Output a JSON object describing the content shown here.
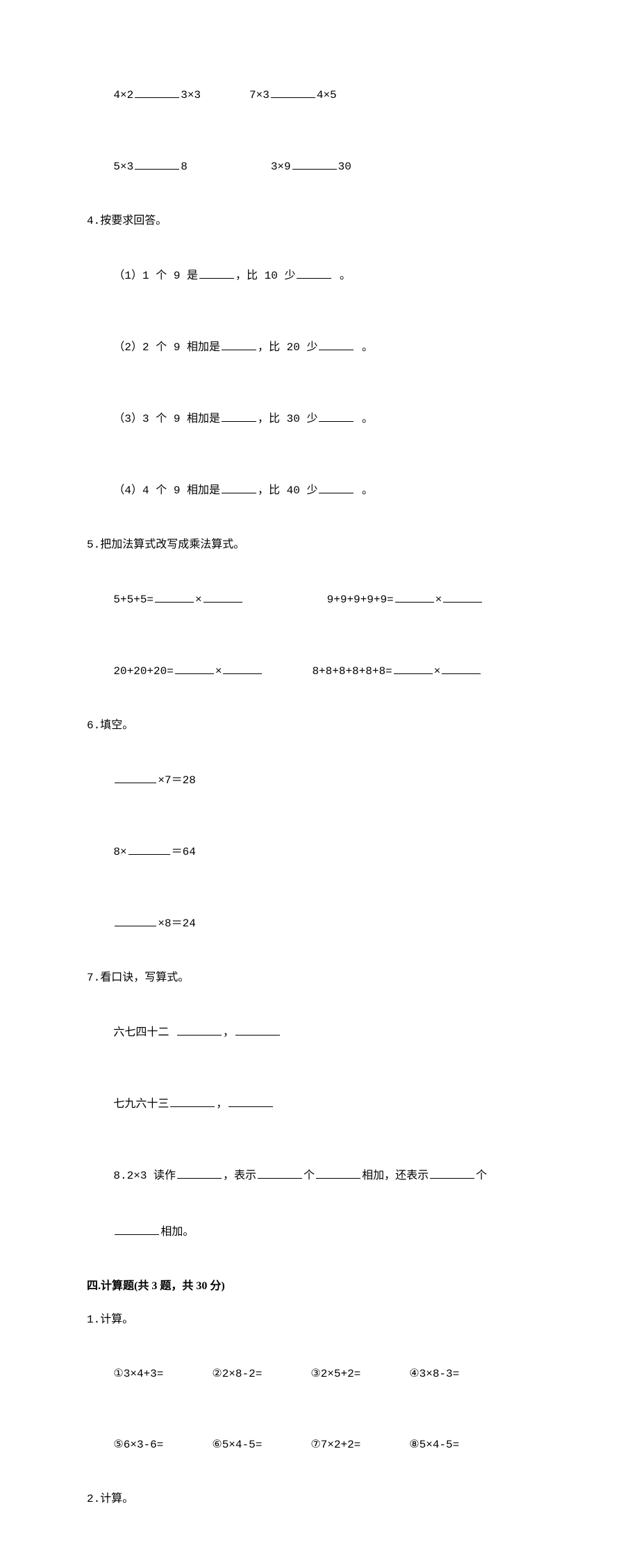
{
  "q3": {
    "row1": {
      "a": "4×2",
      "b": "3×3",
      "c": "7×3",
      "d": "4×5"
    },
    "row2": {
      "a": "5×3",
      "b": "8",
      "c": "3×9",
      "d": "30"
    }
  },
  "q4": {
    "title": "4.按要求回答。",
    "items": [
      {
        "prefix": "（1）1 个 9 是",
        "mid": "，比 10 少",
        "suffix": " 。"
      },
      {
        "prefix": "（2）2 个 9 相加是",
        "mid": "，比 20 少",
        "suffix": " 。"
      },
      {
        "prefix": "（3）3 个 9 相加是",
        "mid": "，比 30 少",
        "suffix": " 。"
      },
      {
        "prefix": "（4）4 个 9 相加是",
        "mid": "，比 40 少",
        "suffix": " 。"
      }
    ]
  },
  "q5": {
    "title": "5.把加法算式改写成乘法算式。",
    "row1": {
      "a": "5+5+5=",
      "b": "9+9+9+9+9="
    },
    "row2": {
      "a": "20+20+20=",
      "b": "8+8+8+8+8+8="
    },
    "times": "×"
  },
  "q6": {
    "title": "6.填空。",
    "l1_suffix": "×7＝28",
    "l2_prefix": "8×",
    "l2_suffix": "＝64",
    "l3_suffix": "×8＝24"
  },
  "q7": {
    "title": "7.看口诀，写算式。",
    "l1": "六七四十二 ",
    "l2": "七九六十三",
    "comma": "，"
  },
  "q8": {
    "prefix": "8.2×3 读作",
    "p2": "，表示",
    "p3": "个",
    "p4": "相加，还表示",
    "p5": "个",
    "p6": "相加。"
  },
  "section4": {
    "title": "四.计算题(共 3 题，共 30 分)",
    "q1_title": "1.计算。",
    "q1_row1": {
      "a": "①3×4+3=",
      "b": "②2×8-2=",
      "c": "③2×5+2=",
      "d": "④3×8-3="
    },
    "q1_row2": {
      "a": "⑤6×3-6=",
      "b": "⑥5×4-5=",
      "c": "⑦7×2+2=",
      "d": "⑧5×4-5="
    },
    "q2_title": "2.计算。"
  }
}
